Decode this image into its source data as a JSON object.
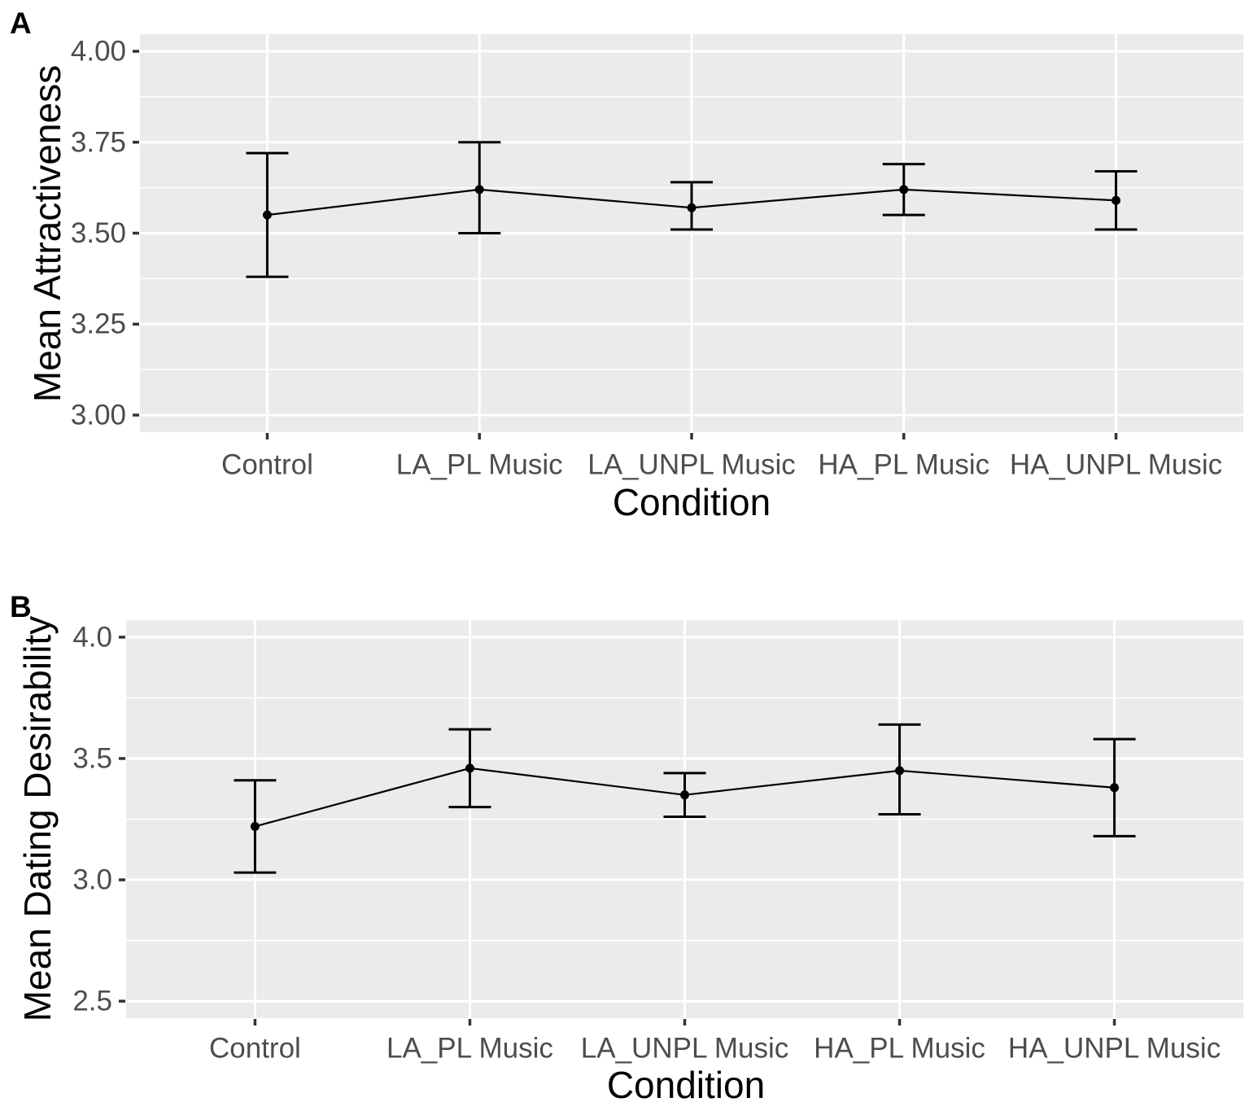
{
  "figure": {
    "panel_background": "#EBEBEB",
    "gridline_color": "#FFFFFF",
    "data_color": "#000000",
    "tick_mark_color": "#333333",
    "tick_label_color": "#4D4D4D",
    "axis_title_color": "#000000"
  },
  "chart_data": [
    {
      "panel_label": "A",
      "type": "line",
      "subtype": "point-with-errorbars",
      "title": "",
      "xlabel": "Condition",
      "ylabel": "Mean Attractiveness",
      "categories": [
        "Control",
        "LA_PL Music",
        "LA_UNPL Music",
        "HA_PL Music",
        "HA_UNPL Music"
      ],
      "series": [
        {
          "name": "Mean Attractiveness",
          "values": [
            3.55,
            3.62,
            3.57,
            3.62,
            3.59
          ],
          "error_low": [
            3.38,
            3.5,
            3.51,
            3.55,
            3.51
          ],
          "error_high": [
            3.72,
            3.75,
            3.64,
            3.69,
            3.67
          ]
        }
      ],
      "yticks": [
        3.0,
        3.25,
        3.5,
        3.75,
        4.0
      ],
      "ytick_labels": [
        "3.00",
        "3.25",
        "3.50",
        "3.75",
        "4.00"
      ],
      "ylim": [
        2.953,
        4.047
      ],
      "grid": "major+minor horizontal, major vertical at categories",
      "legend": "none"
    },
    {
      "panel_label": "B",
      "type": "line",
      "subtype": "point-with-errorbars",
      "title": "",
      "xlabel": "Condition",
      "ylabel": "Mean Dating Desirability",
      "categories": [
        "Control",
        "LA_PL Music",
        "LA_UNPL Music",
        "HA_PL Music",
        "HA_UNPL Music"
      ],
      "series": [
        {
          "name": "Mean Dating Desirability",
          "values": [
            3.22,
            3.46,
            3.35,
            3.45,
            3.38
          ],
          "error_low": [
            3.03,
            3.3,
            3.26,
            3.27,
            3.18
          ],
          "error_high": [
            3.41,
            3.62,
            3.44,
            3.64,
            3.58
          ]
        }
      ],
      "yticks": [
        2.5,
        3.0,
        3.5,
        4.0
      ],
      "ytick_labels": [
        "2.5",
        "3.0",
        "3.5",
        "4.0"
      ],
      "ylim": [
        2.43,
        4.07
      ],
      "grid": "major+minor horizontal, major vertical at categories",
      "legend": "none"
    }
  ]
}
